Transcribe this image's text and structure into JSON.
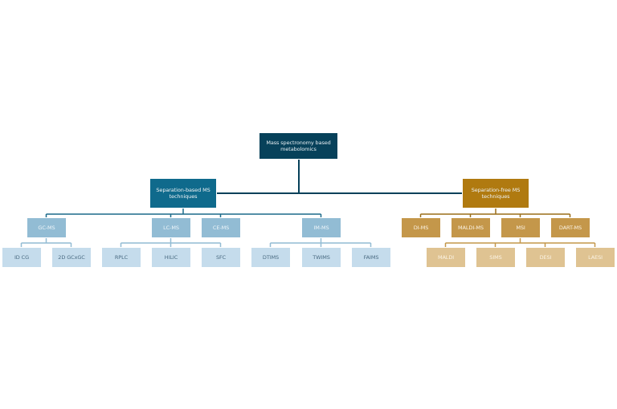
{
  "colors": {
    "root": "#07415a",
    "left_l1": "#0f6a8c",
    "left_l2": "#92bcd4",
    "left_l3": "#c5dcec",
    "right_l1": "#b07a10",
    "right_l2": "#c4974a",
    "right_l3": "#dfc392",
    "left_line": "#1b6a8a",
    "right_line": "#9a6e18"
  },
  "root": {
    "label": "Mass spectronomy based metabolomics"
  },
  "separation_based": {
    "label": "Separation-based MS techniques",
    "children": [
      {
        "label": "GC-MS",
        "children": [
          {
            "label": "ID CG"
          },
          {
            "label": "2D GCxGC"
          }
        ]
      },
      {
        "label": "LC-MS",
        "children": [
          {
            "label": "RPLC"
          },
          {
            "label": "HILIC"
          },
          {
            "label": "SFC"
          }
        ]
      },
      {
        "label": "CE-MS",
        "children": []
      },
      {
        "label": "IM-MS",
        "children": [
          {
            "label": "DTIMS"
          },
          {
            "label": "TWIMS"
          },
          {
            "label": "FAIMS"
          }
        ]
      }
    ]
  },
  "separation_free": {
    "label": "Separation-free MS techniques",
    "children": [
      {
        "label": "DI-MS",
        "children": []
      },
      {
        "label": "MALDI-MS",
        "children": []
      },
      {
        "label": "MSI",
        "children": [
          {
            "label": "MALDI"
          },
          {
            "label": "SIMS"
          },
          {
            "label": "DESI"
          },
          {
            "label": "LAESI"
          }
        ]
      },
      {
        "label": "DART-MS",
        "children": []
      }
    ]
  }
}
